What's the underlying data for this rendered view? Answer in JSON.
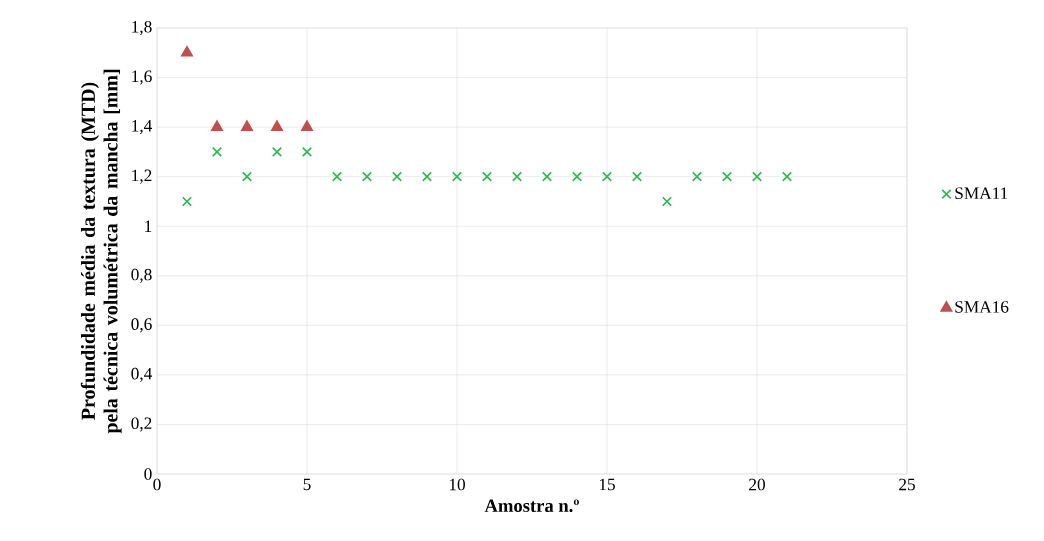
{
  "chart_data": {
    "type": "scatter",
    "xlabel": "Amostra n.º",
    "ylabel": "Profundidade média da textura (MTD) pela técnica volumétrica da mancha [mm]",
    "series": [
      {
        "name": "SMA11",
        "color": "#2eb84f",
        "marker": "cross",
        "x": [
          1,
          2,
          3,
          4,
          5,
          6,
          7,
          8,
          9,
          10,
          11,
          12,
          13,
          14,
          15,
          16,
          17,
          18,
          19,
          20,
          21
        ],
        "values": [
          1.1,
          1.3,
          1.2,
          1.3,
          1.3,
          1.2,
          1.2,
          1.2,
          1.2,
          1.2,
          1.2,
          1.2,
          1.2,
          1.2,
          1.2,
          1.2,
          1.1,
          1.2,
          1.2,
          1.2,
          1.2
        ]
      },
      {
        "name": "SMA16",
        "color": "#c0504d",
        "marker": "triangle",
        "x": [
          1,
          2,
          3,
          4,
          5
        ],
        "values": [
          1.7,
          1.4,
          1.4,
          1.4,
          1.4
        ]
      }
    ],
    "xlim": [
      0,
      25
    ],
    "xticks": [
      0,
      5,
      10,
      15,
      20,
      25
    ],
    "ylim": [
      0,
      1.8
    ],
    "yticks": [
      0,
      {
        "value": 0.2,
        "label": "0,2"
      },
      {
        "value": 0.4,
        "label": "0,4"
      },
      {
        "value": 0.6,
        "label": "0,6"
      },
      {
        "value": 0.8,
        "label": "0,8"
      },
      1,
      {
        "value": 1.2,
        "label": "1,2"
      },
      {
        "value": 1.4,
        "label": "1,4"
      },
      {
        "value": 1.6,
        "label": "1,6"
      },
      {
        "value": 1.8,
        "label": "1,8"
      }
    ],
    "grid": true,
    "legend": "right"
  }
}
